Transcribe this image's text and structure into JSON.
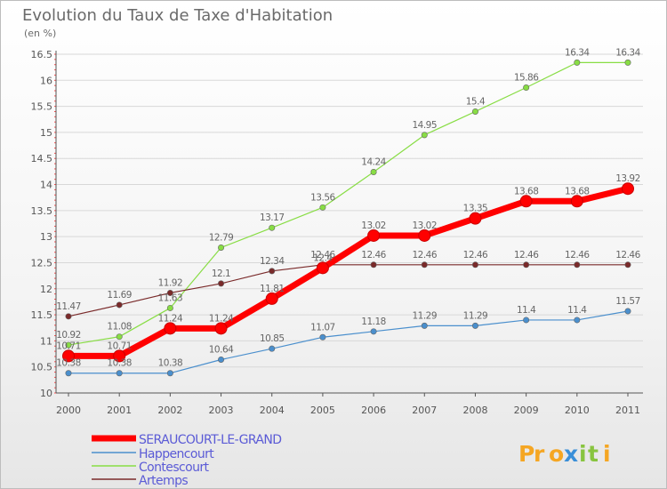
{
  "chart_data": {
    "type": "line",
    "title": "Evolution du Taux de Taxe d'Habitation",
    "unit": "(en %)",
    "x": [
      "2000",
      "2001",
      "2002",
      "2003",
      "2004",
      "2005",
      "2006",
      "2007",
      "2008",
      "2009",
      "2010",
      "2011"
    ],
    "ylim": [
      10,
      16.5
    ],
    "yticks": [
      "10",
      "10.5",
      "11",
      "11.5",
      "12",
      "12.5",
      "13",
      "13.5",
      "14",
      "14.5",
      "15",
      "15.5",
      "16",
      "16.5"
    ],
    "grid": "horizontal",
    "legend_placement": "bottom-left",
    "series": [
      {
        "name": "SERAUCOURT-LE-GRAND",
        "color": "#ff0000",
        "values": [
          10.71,
          10.71,
          11.24,
          11.24,
          11.81,
          12.4,
          13.02,
          13.02,
          13.35,
          13.68,
          13.68,
          13.92
        ],
        "labels": [
          "10.71",
          "10.71",
          "11.24",
          "11.24",
          "11.81",
          "12.4",
          "13.02",
          "13.02",
          "13.35",
          "13.68",
          "13.68",
          "13.92"
        ]
      },
      {
        "name": "Happencourt",
        "color": "#4a8fcd",
        "values": [
          10.38,
          10.38,
          10.38,
          10.64,
          10.85,
          11.07,
          11.18,
          11.29,
          11.29,
          11.4,
          11.4,
          11.57
        ],
        "labels": [
          "10.38",
          "10.38",
          "10.38",
          "10.64",
          "10.85",
          "11.07",
          "11.18",
          "11.29",
          "11.29",
          "11.4",
          "11.4",
          "11.57"
        ]
      },
      {
        "name": "Contescourt",
        "color": "#88dd44",
        "values": [
          10.92,
          11.08,
          11.63,
          12.79,
          13.17,
          13.56,
          14.24,
          14.95,
          15.4,
          15.86,
          16.34,
          16.34
        ],
        "labels": [
          "10.92",
          "11.08",
          "11.63",
          "12.79",
          "13.17",
          "13.56",
          "14.24",
          "14.95",
          "15.4",
          "15.86",
          "16.34",
          "16.34"
        ]
      },
      {
        "name": "Artemps",
        "color": "#7a2a2a",
        "values": [
          11.47,
          11.69,
          11.92,
          12.1,
          12.34,
          12.46,
          12.46,
          12.46,
          12.46,
          12.46,
          12.46,
          12.46
        ],
        "labels": [
          "11.47",
          "11.69",
          "11.92",
          "12.1",
          "12.34",
          "12.46",
          "12.46",
          "12.46",
          "12.46",
          "12.46",
          "12.46",
          "12.46"
        ]
      }
    ]
  },
  "logo": {
    "text": "Proxiti"
  }
}
